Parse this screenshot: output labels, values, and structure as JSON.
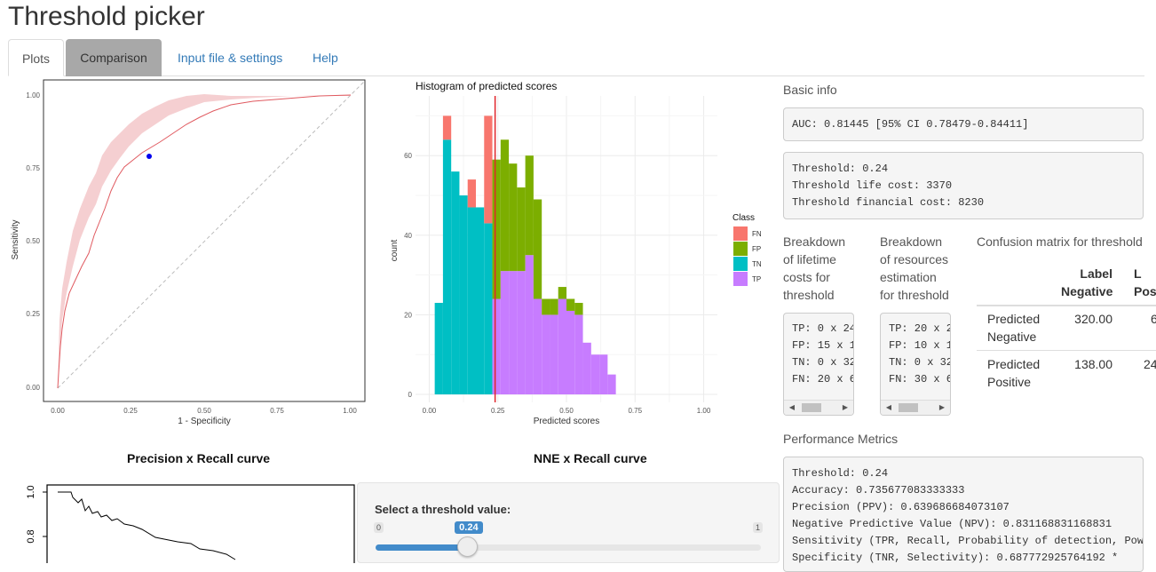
{
  "app": {
    "title": "Threshold picker"
  },
  "tabs": [
    {
      "label": "Plots",
      "active": true
    },
    {
      "label": "Comparison",
      "active": false
    },
    {
      "label": "Input file & settings",
      "active": false
    },
    {
      "label": "Help",
      "active": false
    }
  ],
  "roc_plot": {
    "ylabel": "Sensitivity",
    "xlabel": "1 - Specificity",
    "xticks": [
      "0.00",
      "0.25",
      "0.50",
      "0.75",
      "1.00"
    ],
    "yticks": [
      "0.00",
      "0.25",
      "0.50",
      "0.75",
      "1.00"
    ],
    "marker": {
      "x": 0.31,
      "y": 0.79
    }
  },
  "histogram": {
    "title": "Histogram of predicted scores",
    "xlabel": "Predicted scores",
    "ylabel": "count",
    "xticks": [
      "0.00",
      "0.25",
      "0.50",
      "0.75",
      "1.00"
    ],
    "yticks": [
      "0",
      "20",
      "40",
      "60"
    ],
    "legend_title": "Class",
    "legend": [
      {
        "label": "FN",
        "color": "#F8766D"
      },
      {
        "label": "FP",
        "color": "#7CAE00"
      },
      {
        "label": "TN",
        "color": "#00BFC4"
      },
      {
        "label": "TP",
        "color": "#C77CFF"
      }
    ],
    "threshold_line": 0.24
  },
  "chart_data": {
    "type": "bar",
    "title": "Histogram of predicted scores",
    "xlabel": "Predicted scores",
    "ylabel": "count",
    "bin_width": 0.03,
    "bin_starts": [
      0.02,
      0.05,
      0.08,
      0.11,
      0.14,
      0.17,
      0.2,
      0.23,
      0.26,
      0.29,
      0.32,
      0.35,
      0.38,
      0.41,
      0.44,
      0.47,
      0.5,
      0.53,
      0.56,
      0.59,
      0.62,
      0.65
    ],
    "series": [
      {
        "name": "TN",
        "values": [
          23,
          64,
          56,
          50,
          47,
          47,
          43,
          0,
          0,
          0,
          0,
          0,
          0,
          0,
          0,
          0,
          0,
          0,
          0,
          0,
          0,
          0
        ]
      },
      {
        "name": "FN",
        "values": [
          0,
          6,
          0,
          0,
          7,
          0,
          27,
          0,
          0,
          0,
          0,
          0,
          0,
          0,
          0,
          0,
          0,
          0,
          0,
          0,
          0,
          0
        ]
      },
      {
        "name": "TP",
        "values": [
          0,
          0,
          0,
          0,
          0,
          0,
          0,
          24,
          31,
          31,
          31,
          35,
          24,
          20,
          20,
          24,
          21,
          20,
          13,
          10,
          10,
          5
        ]
      },
      {
        "name": "FP",
        "values": [
          0,
          0,
          0,
          0,
          0,
          0,
          0,
          35,
          33,
          27,
          21,
          25,
          25,
          4,
          4,
          3,
          3,
          3,
          0,
          0,
          0,
          0
        ]
      }
    ],
    "xlim": [
      -0.05,
      1.05
    ],
    "ylim": [
      -2,
      75
    ],
    "threshold": 0.24
  },
  "basic_info": {
    "title": "Basic info",
    "auc_text": "AUC: 0.81445 [95% CI 0.78479-0.84411]",
    "threshold_line": "Threshold: 0.24",
    "life_cost_line": "Threshold life cost: 3370",
    "financial_cost_line": "Threshold financial cost: 8230"
  },
  "breakdown_life": {
    "label": [
      "Breakdown",
      "of lifetime",
      "costs for",
      "threshold"
    ],
    "lines": [
      "TP: 0 x 24",
      "FP: 15 x 1",
      "TN: 0 x 32",
      "FN: 20 x 6"
    ]
  },
  "breakdown_resources": {
    "label": [
      "Breakdown",
      "of resources",
      "estimation",
      "for threshold"
    ],
    "lines": [
      "TP: 20 x 2",
      "FP: 10 x 1",
      "TN: 0 x 32",
      "FN: 30 x 6"
    ]
  },
  "confusion_matrix": {
    "title": "Confusion matrix for threshold",
    "header": [
      [
        "Label",
        "Negative"
      ],
      [
        "L",
        "Pos"
      ]
    ],
    "rows": [
      {
        "label": [
          "Predicted",
          "Negative"
        ],
        "values": [
          "320.00",
          "6"
        ]
      },
      {
        "label": [
          "Predicted",
          "Positive"
        ],
        "values": [
          "138.00",
          "24"
        ]
      }
    ]
  },
  "performance": {
    "title": "Performance Metrics",
    "lines": [
      "Threshold: 0.24",
      "Accuracy: 0.735677083333333",
      "Precision (PPV): 0.639686684073107",
      "Negative Predictive Value (NPV): 0.831168831168831",
      "Sensitivity (TPR, Recall, Probability of detection, Powe",
      "Specificity (TNR, Selectivity): 0.687772925764192 *"
    ]
  },
  "pr_curve": {
    "title": "Precision x Recall curve",
    "yticks": [
      "1.0",
      "0.8"
    ]
  },
  "nne_curve": {
    "title": "NNE x Recall curve"
  },
  "slider": {
    "label": "Select a threshold value:",
    "min": "0",
    "max": "1",
    "value": "0.24",
    "fraction": 0.24
  }
}
